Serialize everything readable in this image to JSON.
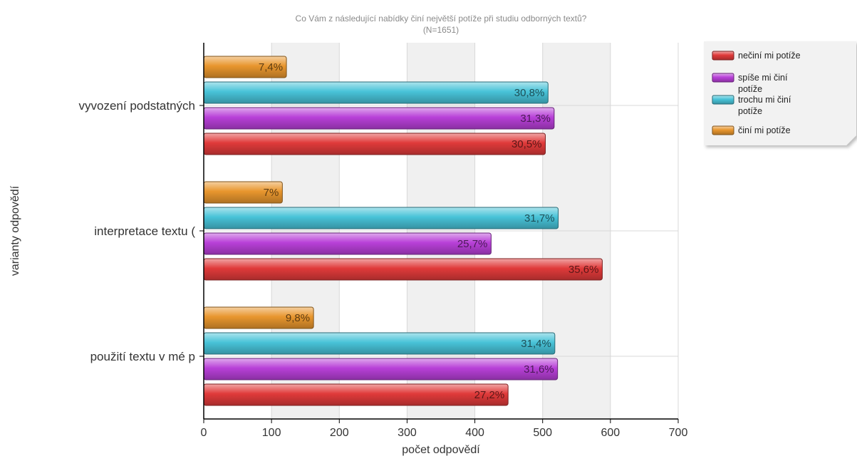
{
  "chart_data": {
    "type": "bar",
    "orientation": "horizontal",
    "title": "Co Vám z následující nabídky činí největší potíže při studiu odborných textů?",
    "subtitle": "(N=1651)",
    "xlabel": "počet odpovědí",
    "ylabel": "varianty odpovědí",
    "xlim": [
      0,
      700
    ],
    "xticks": [
      0,
      100,
      200,
      300,
      400,
      500,
      600,
      700
    ],
    "grid": true,
    "legend_position": "top-right",
    "categories": [
      "vyvození podstatných",
      "interpretace textu (",
      "použití textu v mé p"
    ],
    "series": [
      {
        "name": "nečiní mi potíže",
        "color": "#e03a3a",
        "values": [
          504,
          588,
          449
        ],
        "labels": [
          "30,5%",
          "35,6%",
          "27,2%"
        ]
      },
      {
        "name": "spíše mi činí potíže",
        "color": "#b840d8",
        "values": [
          517,
          424,
          522
        ],
        "labels": [
          "31,3%",
          "25,7%",
          "31,6%"
        ]
      },
      {
        "name": "trochu mi činí potíže",
        "color": "#48c3d8",
        "values": [
          508,
          523,
          518
        ],
        "labels": [
          "30,8%",
          "31,7%",
          "31,4%"
        ]
      },
      {
        "name": "činí mi potíže",
        "color": "#e8962e",
        "values": [
          122,
          116,
          162
        ],
        "labels": [
          "7,4%",
          "7%",
          "9,8%"
        ]
      }
    ]
  }
}
